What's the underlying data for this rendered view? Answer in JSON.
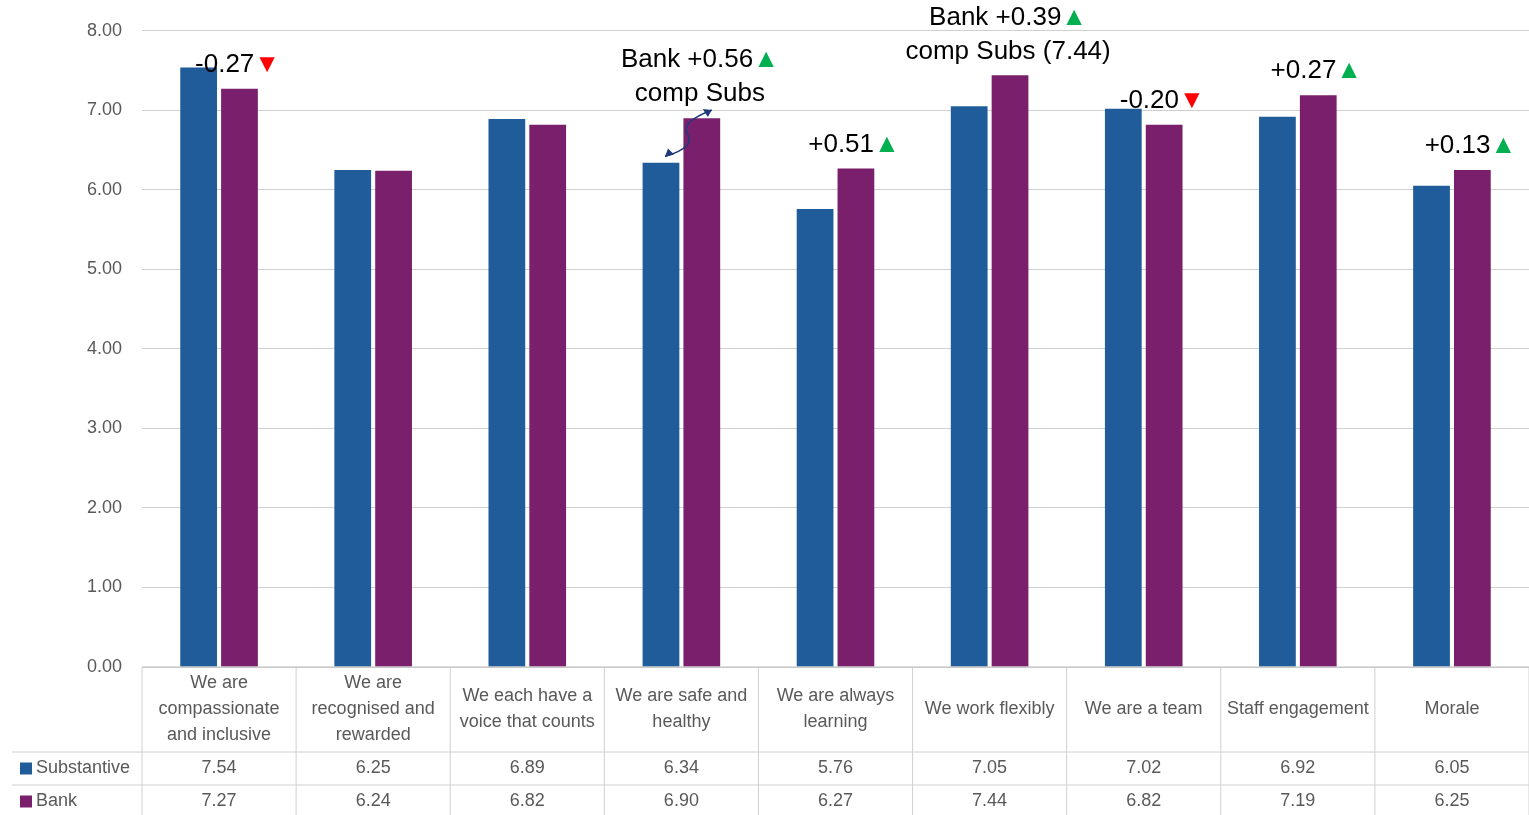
{
  "chart_data": {
    "type": "bar",
    "categories": [
      "We are compassionate and inclusive",
      "We are recognised and rewarded",
      "We each have a voice that counts",
      "We are safe and healthy",
      "We are always learning",
      "We work flexibly",
      "We are a team",
      "Staff engagement",
      "Morale"
    ],
    "series": [
      {
        "name": "Substantive",
        "color": "#1f5c99",
        "values": [
          7.54,
          6.25,
          6.89,
          6.34,
          5.76,
          7.05,
          7.02,
          6.92,
          6.05
        ],
        "value_labels": [
          "7.54",
          "6.25",
          "6.89",
          "6.34",
          "5.76",
          "7.05",
          "7.02",
          "6.92",
          "6.05"
        ]
      },
      {
        "name": "Bank",
        "color": "#7a1f6b",
        "values": [
          7.27,
          6.24,
          6.82,
          6.9,
          6.27,
          7.44,
          6.82,
          7.19,
          6.25
        ],
        "value_labels": [
          "7.27",
          "6.24",
          "6.82",
          "6.90",
          "6.27",
          "7.44",
          "6.82",
          "7.19",
          "6.25"
        ]
      }
    ],
    "ylim": [
      0,
      8
    ],
    "yticks": [
      {
        "value": 0,
        "label": "0.00"
      },
      {
        "value": 1,
        "label": "1.00"
      },
      {
        "value": 2,
        "label": "2.00"
      },
      {
        "value": 3,
        "label": "3.00"
      },
      {
        "value": 4,
        "label": "4.00"
      },
      {
        "value": 5,
        "label": "5.00"
      },
      {
        "value": 6,
        "label": "6.00"
      },
      {
        "value": 7,
        "label": "7.00"
      },
      {
        "value": 8,
        "label": "8.00"
      }
    ],
    "grid": "y",
    "legend": "bottom left",
    "annotations": [
      {
        "text": "-0.27▼",
        "x": "We are compassionate and inclusive",
        "y": 7.27
      },
      {
        "text": "Bank +0.56▲\ncomp Subs",
        "x": "We are safe and healthy",
        "y": 6.9
      },
      {
        "text": "+0.51▲",
        "x": "We are always learning",
        "y": 6.27
      },
      {
        "text": "Bank +0.39▲\ncomp Subs (7.44)",
        "x": "We work flexibly",
        "y": 7.44
      },
      {
        "text": "-0.20▼",
        "x": "We are a team",
        "y": 6.82
      },
      {
        "text": "+0.27▲",
        "x": "Staff engagement",
        "y": 7.19
      },
      {
        "text": "+0.13▲",
        "x": "Morale",
        "y": 6.25
      }
    ]
  }
}
